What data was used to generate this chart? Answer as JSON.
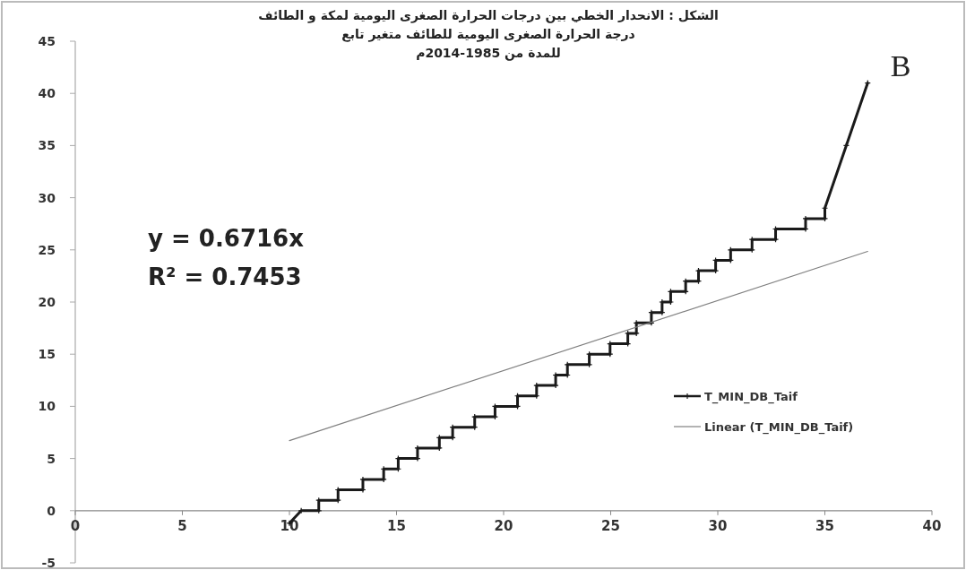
{
  "chart_data": {
    "type": "line",
    "title": "الشكل   : الانحدار الخطي بين درجات الحرارة الصغرى اليومية لمكة و الطائف\nدرجة الحرارة الصغرى اليومية للطائف متغير تابع\nللمدة من 1985-2014م",
    "annotations": [
      "B",
      "y = 0.6716x",
      "R² = 0.7453"
    ],
    "xlim": [
      0,
      40
    ],
    "xticks": [
      0,
      5,
      10,
      15,
      20,
      25,
      30,
      35,
      40
    ],
    "ylim": [
      -5,
      45
    ],
    "yticks": [
      -5,
      0,
      5,
      10,
      15,
      20,
      25,
      30,
      35,
      40,
      45
    ],
    "grid": false,
    "legend": "right",
    "series": [
      {
        "name": "T_MIN_DB_Taif",
        "color": "#1a1a1a",
        "marker": "cross",
        "x": [
          10.0,
          10.55,
          11.37,
          11.37,
          12.27,
          12.27,
          13.43,
          13.43,
          14.4,
          14.4,
          15.08,
          15.08,
          15.98,
          15.98,
          17.0,
          17.0,
          17.62,
          17.62,
          18.65,
          18.65,
          19.6,
          19.6,
          20.65,
          20.65,
          21.54,
          21.54,
          22.43,
          22.43,
          22.98,
          22.98,
          24.0,
          24.0,
          24.97,
          24.97,
          25.8,
          25.8,
          26.2,
          26.2,
          26.9,
          26.9,
          27.4,
          27.4,
          27.8,
          27.8,
          28.5,
          28.5,
          29.1,
          29.1,
          29.9,
          29.9,
          30.6,
          30.6,
          31.6,
          31.6,
          32.7,
          32.7,
          34.1,
          34.1,
          35.0,
          35.0,
          36.0,
          37.0
        ],
        "values": [
          -1.2,
          0,
          0,
          1,
          1,
          2,
          2,
          3,
          3,
          4,
          4,
          5,
          5,
          6,
          6,
          7,
          7,
          8,
          8,
          9,
          9,
          10,
          10,
          11,
          11,
          12,
          12,
          13,
          13,
          14,
          14,
          15,
          15,
          16,
          16,
          17,
          17,
          18,
          18,
          19,
          19,
          20,
          20,
          21,
          21,
          22,
          22,
          23,
          23,
          24,
          24,
          25,
          25,
          26,
          26,
          27,
          27,
          28,
          28,
          29,
          35,
          41
        ]
      },
      {
        "name": "Linear (T_MIN_DB_Taif)",
        "color": "#808080",
        "x": [
          10,
          37
        ],
        "values": [
          6.716,
          24.85
        ]
      }
    ]
  }
}
